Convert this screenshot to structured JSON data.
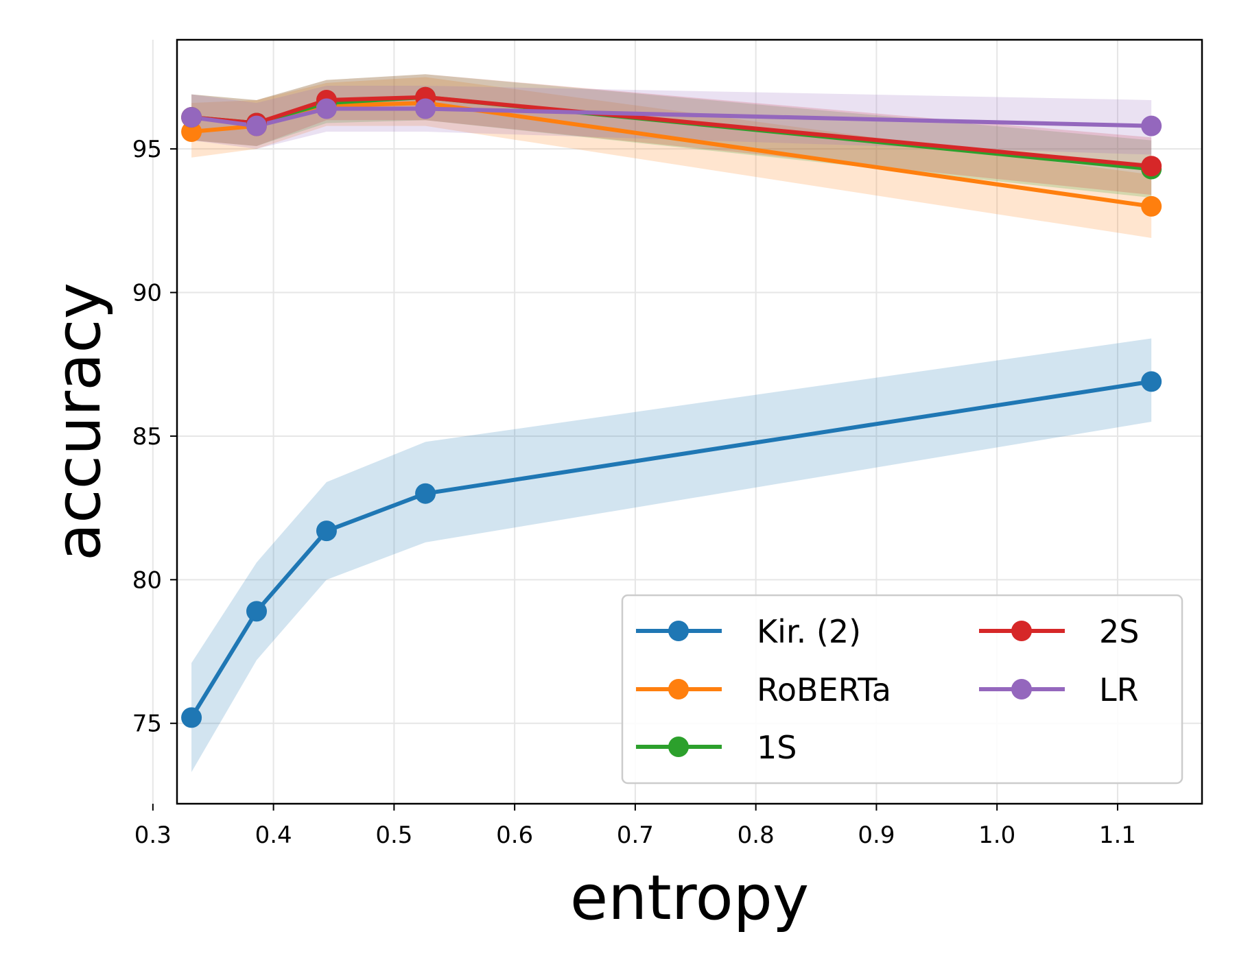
{
  "chart_data": {
    "type": "line",
    "xlabel": "entropy",
    "ylabel": "accuracy",
    "xlim": [
      0.32,
      1.17
    ],
    "ylim": [
      72.2,
      98.8
    ],
    "xticks": [
      0.3,
      0.4,
      0.5,
      0.6,
      0.7,
      0.8,
      0.9,
      1.0,
      1.1
    ],
    "xtick_labels": [
      "0.3",
      "0.4",
      "0.5",
      "0.6",
      "0.7",
      "0.8",
      "0.9",
      "1.0",
      "1.1"
    ],
    "yticks": [
      75,
      80,
      85,
      90,
      95
    ],
    "ytick_labels": [
      "75",
      "80",
      "85",
      "90",
      "95"
    ],
    "grid": true,
    "legend": {
      "placement": "lower-right",
      "columns": 2
    },
    "x": [
      0.332,
      0.386,
      0.444,
      0.526,
      1.128
    ],
    "series": [
      {
        "name": "Kir. (2)",
        "color": "#1f77b4",
        "values": [
          75.2,
          78.9,
          81.7,
          83.0,
          86.9
        ],
        "lower": [
          73.3,
          77.2,
          80.0,
          81.3,
          85.5
        ],
        "upper": [
          77.1,
          80.6,
          83.4,
          84.8,
          88.4
        ]
      },
      {
        "name": "RoBERTa",
        "color": "#ff7f0e",
        "values": [
          95.6,
          95.8,
          96.5,
          96.6,
          93.0
        ],
        "lower": [
          94.7,
          95.0,
          95.8,
          95.8,
          91.9
        ],
        "upper": [
          96.6,
          96.7,
          97.3,
          97.5,
          94.1
        ]
      },
      {
        "name": "1S",
        "color": "#2ca02c",
        "values": [
          96.1,
          95.9,
          96.6,
          96.8,
          94.3
        ],
        "lower": [
          95.3,
          95.1,
          95.9,
          96.0,
          93.3
        ],
        "upper": [
          96.9,
          96.7,
          97.4,
          97.6,
          95.3
        ]
      },
      {
        "name": "2S",
        "color": "#d62728",
        "values": [
          96.1,
          95.9,
          96.7,
          96.8,
          94.4
        ],
        "lower": [
          95.3,
          95.1,
          96.0,
          96.0,
          93.4
        ],
        "upper": [
          96.9,
          96.7,
          97.4,
          97.6,
          95.4
        ]
      },
      {
        "name": "LR",
        "color": "#9467bd",
        "values": [
          96.1,
          95.8,
          96.4,
          96.4,
          95.8
        ],
        "lower": [
          95.3,
          95.0,
          95.6,
          95.6,
          94.8
        ],
        "upper": [
          96.9,
          96.6,
          97.2,
          97.2,
          96.7
        ]
      }
    ]
  }
}
